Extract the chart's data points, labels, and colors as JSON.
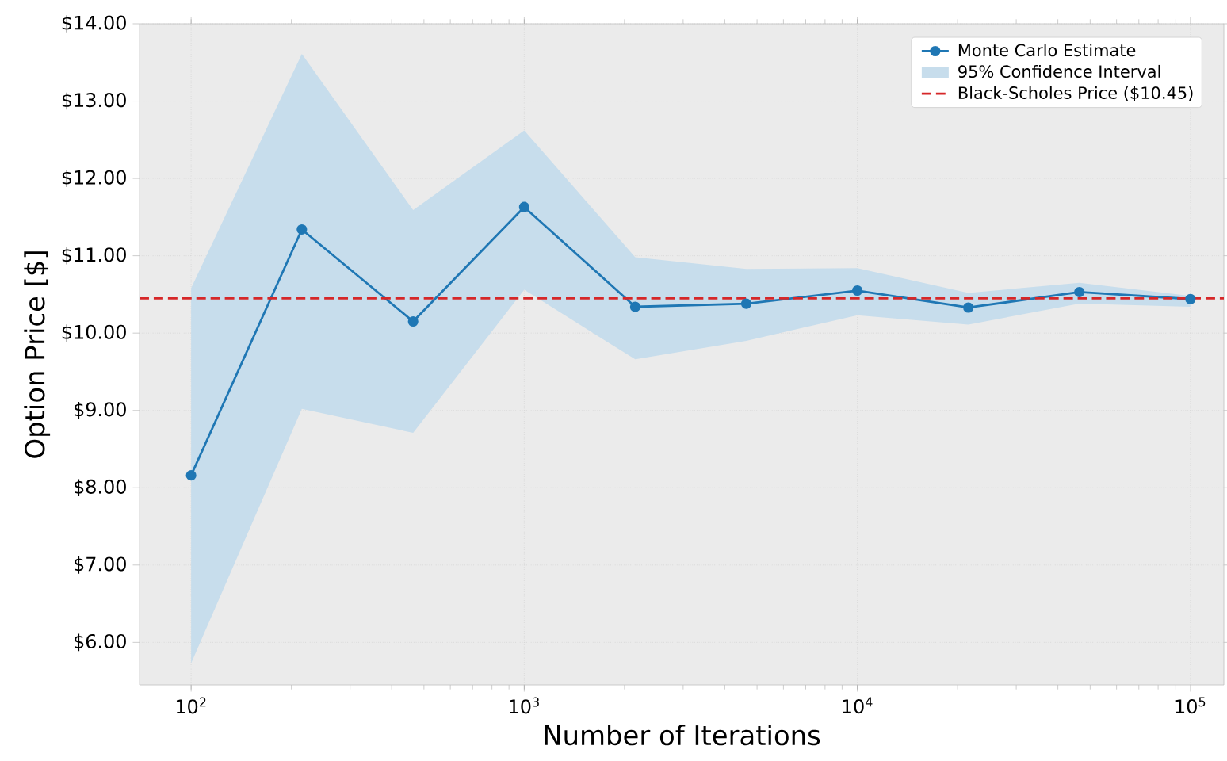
{
  "chart_data": {
    "type": "line",
    "xlabel": "Number of Iterations",
    "ylabel": "Option Price [$]",
    "x": [
      100,
      215,
      464,
      1000,
      2154,
      4642,
      10000,
      21544,
      46416,
      100000
    ],
    "series": [
      {
        "name": "Monte Carlo Estimate",
        "color": "#1f77b4",
        "marker": "circle",
        "line_style": "solid",
        "values": [
          8.16,
          11.34,
          10.15,
          11.63,
          10.34,
          10.38,
          10.55,
          10.33,
          10.53,
          10.44
        ],
        "lower": [
          5.73,
          9.02,
          8.71,
          10.56,
          9.66,
          9.9,
          10.23,
          10.11,
          10.38,
          10.34
        ],
        "upper": [
          10.58,
          13.61,
          11.59,
          12.62,
          10.98,
          10.83,
          10.84,
          10.52,
          10.65,
          10.48
        ]
      }
    ],
    "annotations": [
      "95% Confidence Interval"
    ],
    "ref_lines": [
      {
        "axis": "y",
        "value": 10.45,
        "label": "Black-Scholes Price ($10.45)",
        "color": "#d62728",
        "line_style": "dashed"
      }
    ],
    "log": "x",
    "xlim": [
      70,
      126000
    ],
    "ylim": [
      5.45,
      14.0
    ],
    "xticks": [
      {
        "value": 100,
        "label": "10$^{2}$"
      },
      {
        "value": 1000,
        "label": "10$^{3}$"
      },
      {
        "value": 10000,
        "label": "10$^{4}$"
      },
      {
        "value": 100000,
        "label": "10$^{5}$"
      }
    ],
    "yticks": [
      {
        "value": 6,
        "label": "$6.00"
      },
      {
        "value": 7,
        "label": "$7.00"
      },
      {
        "value": 8,
        "label": "$8.00"
      },
      {
        "value": 9,
        "label": "$9.00"
      },
      {
        "value": 10,
        "label": "$10.00"
      },
      {
        "value": 11,
        "label": "$11.00"
      },
      {
        "value": 12,
        "label": "$12.00"
      },
      {
        "value": 13,
        "label": "$13.00"
      },
      {
        "value": 14,
        "label": "$14.00"
      }
    ],
    "grid": true,
    "legend": "top right"
  }
}
